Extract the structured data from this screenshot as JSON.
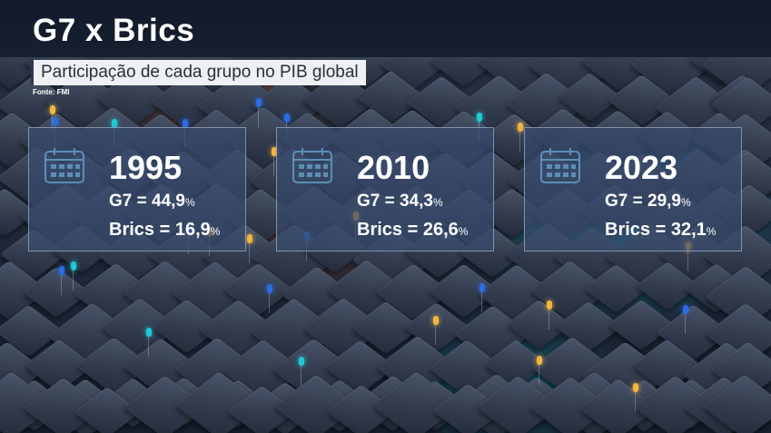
{
  "header": {
    "title": "G7 x Brics",
    "subtitle": "Participação de cada grupo no PIB global",
    "source": "Fonte: FMI"
  },
  "icons": {
    "calendar": "calendar-icon"
  },
  "colors": {
    "card_background": "#374b6e",
    "icon_color": "#5b8fb5",
    "accent_orange": "#e0642a",
    "accent_teal": "#1fc9d4"
  },
  "cards": [
    {
      "year": "1995",
      "g7_label": "G7 = 44,9",
      "g7_unit": "%",
      "brics_label": "Brics = 16,9",
      "brics_unit": "%"
    },
    {
      "year": "2010",
      "g7_label": "G7 = 34,3",
      "g7_unit": "%",
      "brics_label": "Brics = 26,6",
      "brics_unit": "%"
    },
    {
      "year": "2023",
      "g7_label": "G7 = 29,9",
      "g7_unit": "%",
      "brics_label": "Brics = 32,1",
      "brics_unit": "%"
    }
  ]
}
